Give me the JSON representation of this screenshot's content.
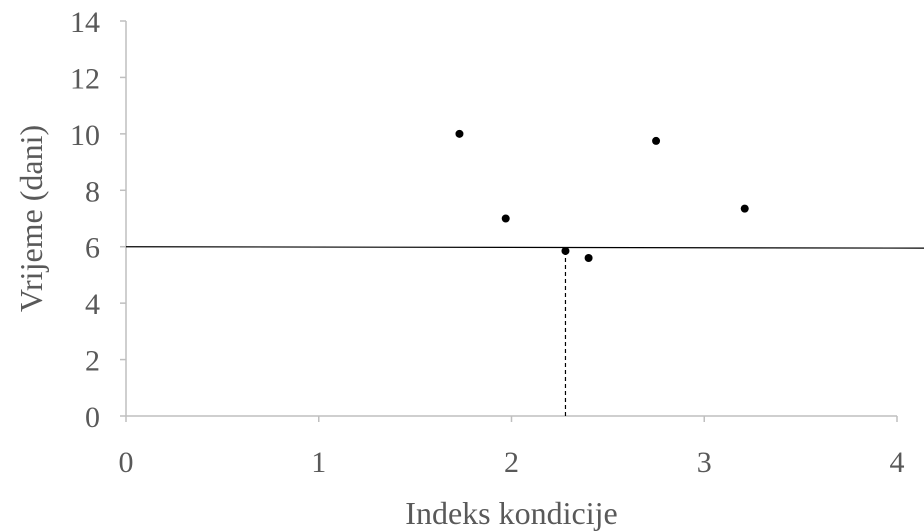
{
  "chart_data": {
    "type": "scatter",
    "title": "",
    "xlabel": "Indeks kondicije",
    "ylabel": "Vrijeme (dani)",
    "xlim": [
      0,
      4
    ],
    "ylim": [
      0,
      14
    ],
    "x_ticks": [
      "0",
      "1",
      "2",
      "3",
      "4"
    ],
    "y_ticks": [
      "0",
      "2",
      "4",
      "6",
      "8",
      "10",
      "12",
      "14"
    ],
    "grid": false,
    "legend": "none",
    "points": [
      {
        "x": 1.73,
        "y": 10.0
      },
      {
        "x": 1.97,
        "y": 7.0
      },
      {
        "x": 2.28,
        "y": 5.85
      },
      {
        "x": 2.4,
        "y": 5.6
      },
      {
        "x": 2.75,
        "y": 9.75
      },
      {
        "x": 3.21,
        "y": 7.35
      }
    ],
    "reference_lines": {
      "horizontal_y": 6,
      "horizontal_y_end": 5.95,
      "vertical_x": 2.28
    },
    "colors": {
      "points": "#000000",
      "axis": "#bfbfbf",
      "text": "#595959",
      "reference_line": "#000000"
    }
  }
}
